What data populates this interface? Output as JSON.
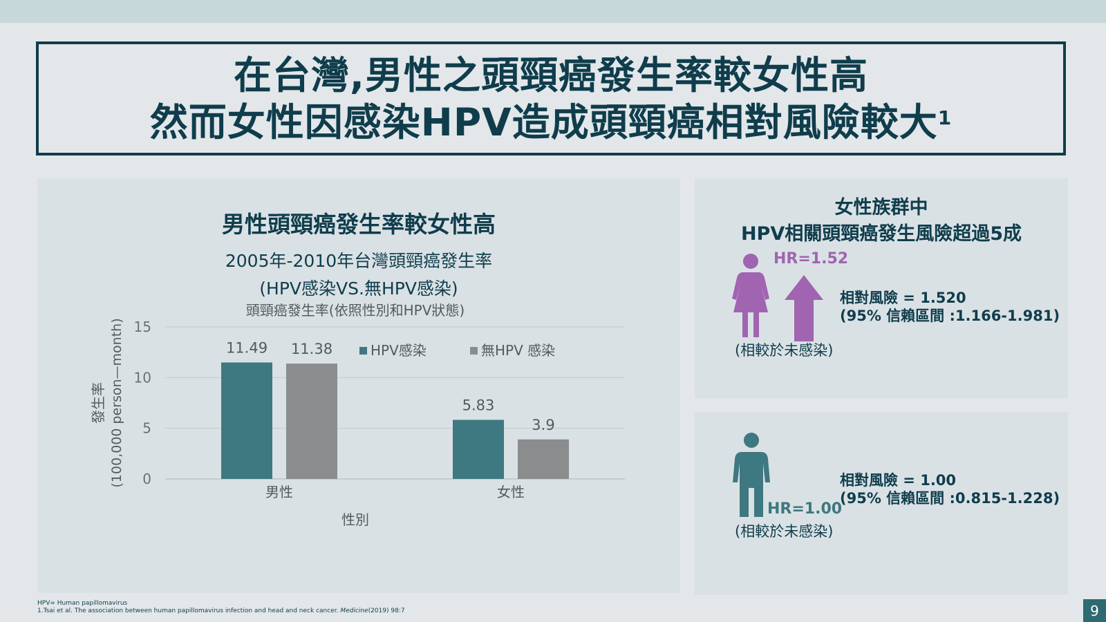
{
  "slide": {
    "title_line1": "在台灣,男性之頭頸癌發生率較女性高",
    "title_line2": "然而女性因感染HPV造成頭頸癌相對風險較大",
    "title_sup": "1",
    "page_number": "9"
  },
  "left_panel": {
    "heading": "男性頭頸癌發生率較女性高",
    "subtitle1": "2005年-2010年台灣頭頸癌發生率",
    "subtitle2": "(HPV感染VS.無HPV感染)"
  },
  "chart_data": {
    "type": "bar",
    "title": "頭頸癌發生率(依照性別和HPV狀態)",
    "categories": [
      "男性",
      "女性"
    ],
    "series": [
      {
        "name": "HPV感染",
        "values": [
          11.49,
          5.83
        ],
        "color": "#3e7880"
      },
      {
        "name": "無HPV 感染",
        "values": [
          11.38,
          3.9
        ],
        "color": "#8a8c8d"
      }
    ],
    "xlabel": "性別",
    "ylabel_line1": "發生率",
    "ylabel_line2": "(100,000 person—month)",
    "ylim": [
      0,
      15
    ],
    "yticks": [
      0,
      5,
      10,
      15
    ],
    "grid": true,
    "legend_position": "top-right"
  },
  "female_panel": {
    "heading_line1": "女性族群中",
    "heading_line2": "HPV相關頭頸癌發生風險超過5成",
    "hr_label": "HR=1.52",
    "risk_line1": "相對風險 = 1.520",
    "risk_line2": "(95% 信賴區間 :1.166-1.981)",
    "compare": "(相較於未感染)",
    "figure_color": "#a064b0"
  },
  "male_panel": {
    "hr_label": "HR=1.00",
    "risk_line1": "相對風險 = 1.00",
    "risk_line2": "(95% 信賴區間 :0.815-1.228)",
    "compare": "(相較於未感染)",
    "figure_color": "#3e7880"
  },
  "footnotes": {
    "line1": "HPV= Human papillomavirus",
    "line2_prefix": "1.Tsai et al. The association between human papillomavirus infection and head and neck cancer.",
    "journal": "Medicine",
    "line2_suffix": "(2019) 98:7"
  }
}
